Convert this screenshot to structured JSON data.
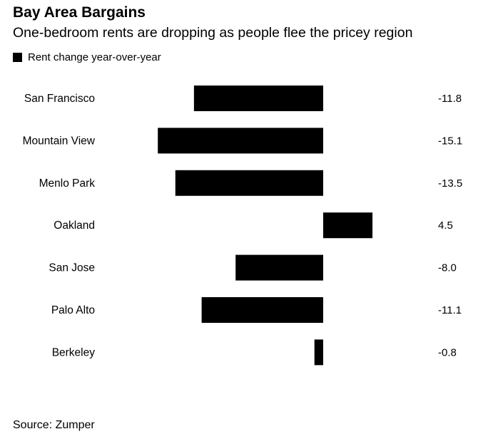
{
  "chart_data": {
    "type": "bar",
    "orientation": "horizontal",
    "title": "Bay Area Bargains",
    "subtitle": "One-bedroom rents are dropping as people flee the pricey region",
    "categories": [
      "San Francisco",
      "Mountain View",
      "Menlo Park",
      "Oakland",
      "San Jose",
      "Palo Alto",
      "Berkeley"
    ],
    "series": [
      {
        "name": "Rent change year-over-year",
        "values": [
          -11.8,
          -15.1,
          -13.5,
          4.5,
          -8.0,
          -11.1,
          -0.8
        ],
        "color": "#000000"
      }
    ],
    "value_labels": [
      "-11.8",
      "-15.1",
      "-13.5",
      "4.5",
      "-8.0",
      "-11.1",
      "-0.8"
    ],
    "xlim": [
      -15.1,
      4.5
    ],
    "legend": "top-left",
    "grid": false,
    "source": "Source: Zumper"
  }
}
